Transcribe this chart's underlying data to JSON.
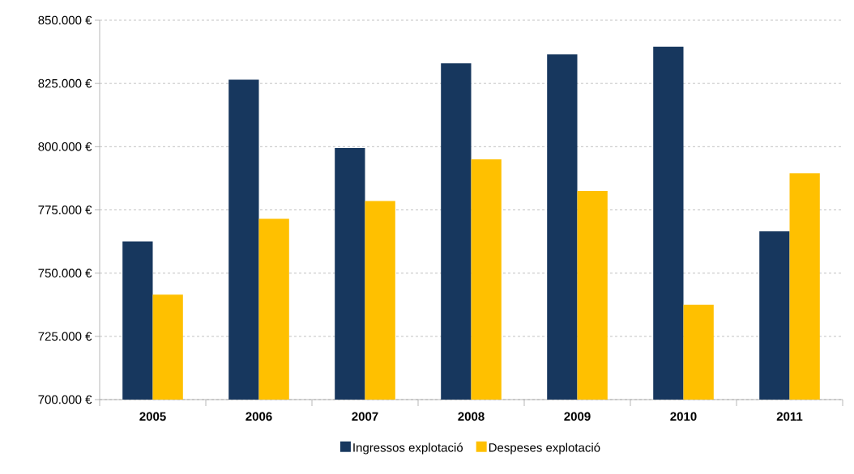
{
  "chart_data": {
    "type": "bar",
    "categories": [
      "2005",
      "2006",
      "2007",
      "2008",
      "2009",
      "2010",
      "2011"
    ],
    "series": [
      {
        "name": "Ingressos explotació",
        "color": "#17375e",
        "values": [
          762500,
          826500,
          799500,
          833000,
          836500,
          839500,
          766500
        ]
      },
      {
        "name": "Despeses explotació",
        "color": "#ffc000",
        "values": [
          741500,
          771500,
          778500,
          795000,
          782500,
          737500,
          789500
        ]
      }
    ],
    "ylim": [
      700000,
      850000
    ],
    "yticks": [
      {
        "value": 700000,
        "label": "700.000 €"
      },
      {
        "value": 725000,
        "label": "725.000 €"
      },
      {
        "value": 750000,
        "label": "750.000 €"
      },
      {
        "value": 775000,
        "label": "775.000 €"
      },
      {
        "value": 800000,
        "label": "800.000 €"
      },
      {
        "value": 825000,
        "label": "825.000 €"
      },
      {
        "value": 850000,
        "label": "850.000 €"
      }
    ],
    "grid": "y",
    "legend": "bottom"
  }
}
